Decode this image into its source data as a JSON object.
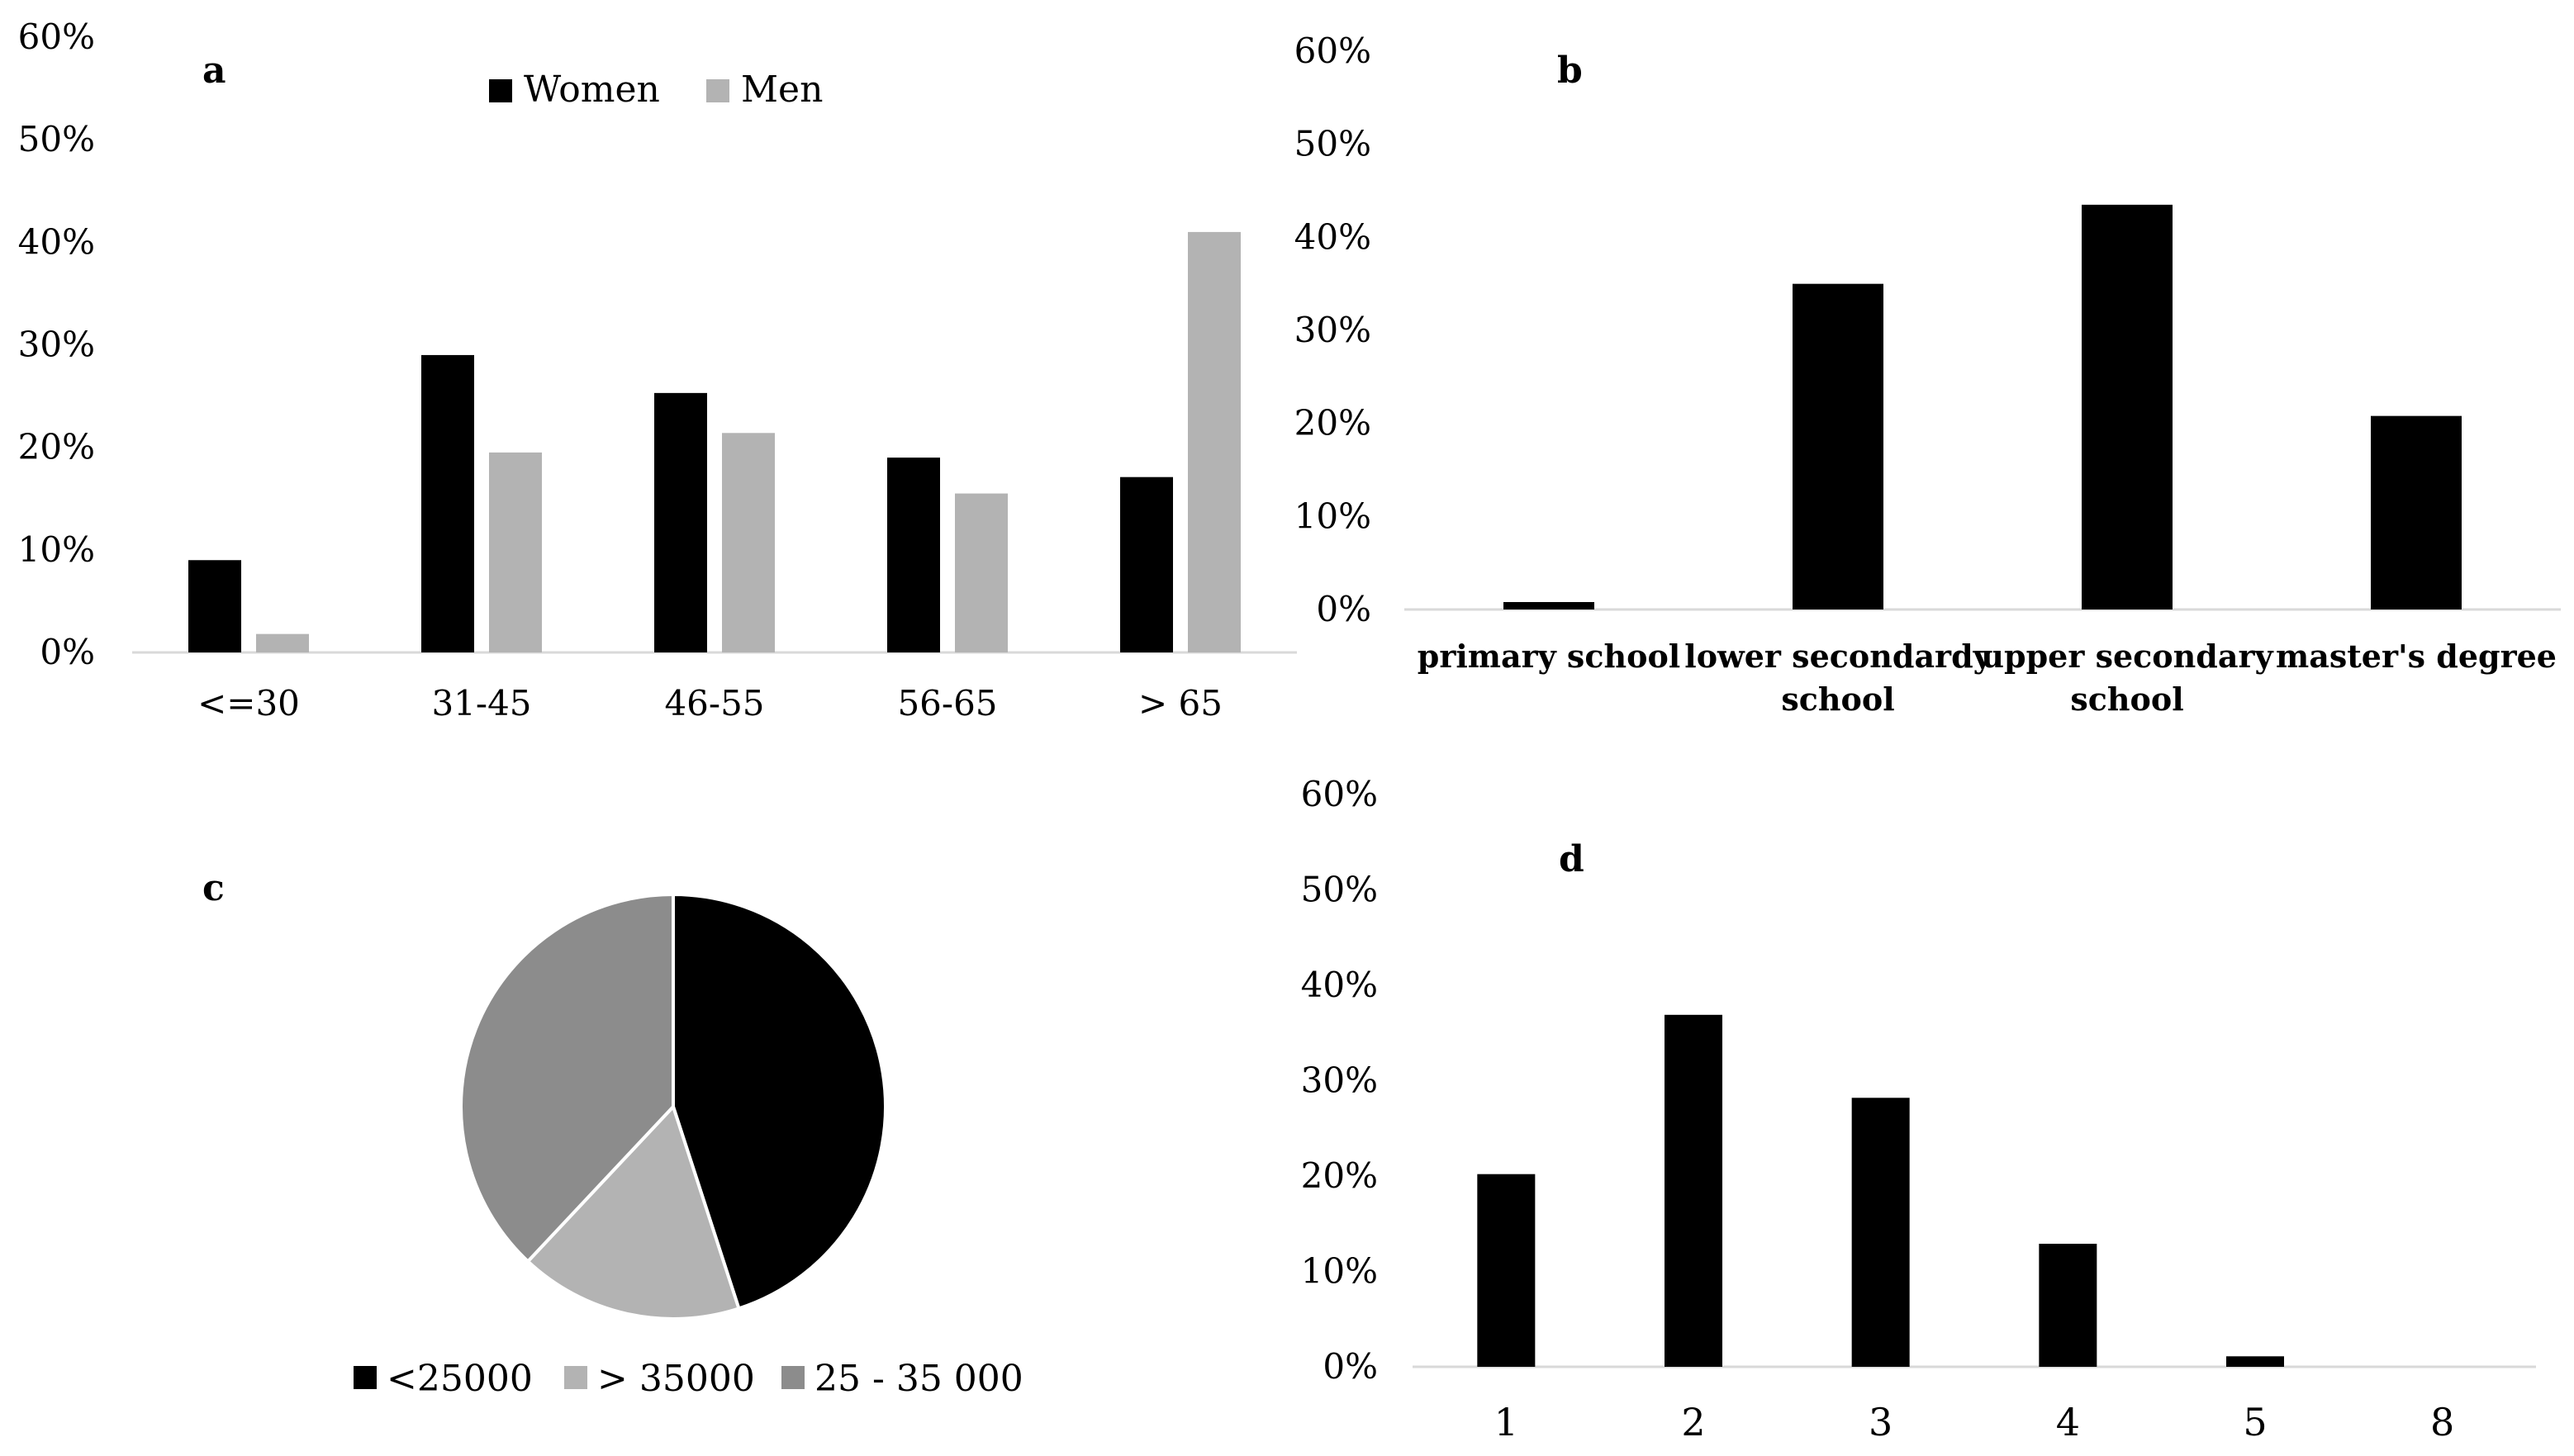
{
  "chart_data": [
    {
      "panel": "a",
      "type": "bar",
      "categories": [
        "<=30",
        "31-45",
        "46-55",
        "56-65",
        "> 65"
      ],
      "series": [
        {
          "name": "Women",
          "values": [
            9,
            29,
            25.3,
            19,
            17.1
          ],
          "color": "#000000"
        },
        {
          "name": "Men",
          "values": [
            1.8,
            19.5,
            21.4,
            15.5,
            41
          ],
          "color": "#b3b3b3"
        }
      ],
      "yticks": [
        "0%",
        "10%",
        "20%",
        "30%",
        "40%",
        "50%",
        "60%"
      ],
      "ylim": [
        0,
        60
      ],
      "legend": "top-center"
    },
    {
      "panel": "b",
      "type": "bar",
      "categories": [
        "primary school",
        "lower secondardy school",
        "upper secondary school",
        "master's degree"
      ],
      "category_lines": [
        [
          "primary school"
        ],
        [
          "lower secondardy",
          "school"
        ],
        [
          "upper secondary",
          "school"
        ],
        [
          "master's degree"
        ]
      ],
      "values": [
        0.8,
        35,
        43.5,
        20.8
      ],
      "color": "#000000",
      "yticks": [
        "0%",
        "10%",
        "20%",
        "30%",
        "40%",
        "50%",
        "60%"
      ],
      "ylim": [
        0,
        60
      ]
    },
    {
      "panel": "c",
      "type": "pie",
      "labels": [
        "<25000",
        "> 35000",
        "25 - 35 000"
      ],
      "values": [
        45,
        17,
        38
      ],
      "colors": [
        "#000000",
        "#b3b3b3",
        "#8c8c8c"
      ],
      "legend": "bottom"
    },
    {
      "panel": "d",
      "type": "bar",
      "categories": [
        "1",
        "2",
        "3",
        "4",
        "5",
        "8"
      ],
      "values": [
        20.2,
        36.9,
        28.2,
        12.9,
        1.1,
        0
      ],
      "color": "#000000",
      "yticks": [
        "0%",
        "10%",
        "20%",
        "30%",
        "40%",
        "50%",
        "60%"
      ],
      "ylim": [
        0,
        60
      ]
    }
  ]
}
